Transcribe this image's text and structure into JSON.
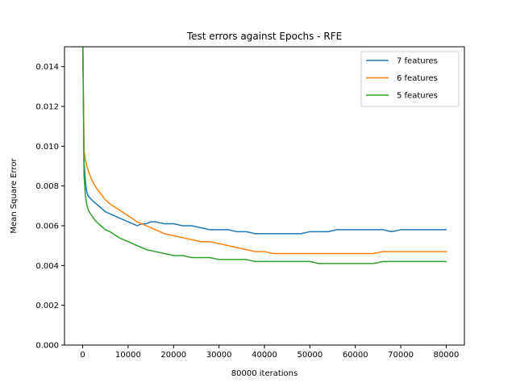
{
  "chart_data": {
    "type": "line",
    "title": "Test errors against Epochs - RFE",
    "xlabel": "80000 iterations",
    "ylabel": "Mean Square Error",
    "xlim": [
      -4000,
      84000
    ],
    "ylim": [
      0,
      0.015
    ],
    "xticks": [
      0,
      10000,
      20000,
      30000,
      40000,
      50000,
      60000,
      70000,
      80000
    ],
    "xtick_labels": [
      "0",
      "10000",
      "20000",
      "30000",
      "40000",
      "50000",
      "60000",
      "70000",
      "80000"
    ],
    "yticks": [
      0,
      0.002,
      0.004,
      0.006,
      0.008,
      0.01,
      0.012,
      0.014
    ],
    "ytick_labels": [
      "0.000",
      "0.002",
      "0.004",
      "0.006",
      "0.008",
      "0.010",
      "0.012",
      "0.014"
    ],
    "grid": false,
    "legend_position": "top-right",
    "series": [
      {
        "name": "7 features",
        "color": "#1f77b4",
        "x": [
          0,
          300,
          600,
          900,
          1200,
          2000,
          3000,
          4000,
          5000,
          6000,
          8000,
          10000,
          11000,
          12000,
          13000,
          14000,
          15000,
          16000,
          18000,
          20000,
          22000,
          24000,
          26000,
          28000,
          30000,
          32000,
          34000,
          36000,
          38000,
          40000,
          42000,
          44000,
          46000,
          48000,
          50000,
          52000,
          54000,
          56000,
          58000,
          60000,
          62000,
          64000,
          66000,
          68000,
          70000,
          72000,
          74000,
          76000,
          78000,
          80000
        ],
        "y": [
          0.016,
          0.0092,
          0.0082,
          0.0077,
          0.0075,
          0.0073,
          0.0071,
          0.0069,
          0.0067,
          0.0066,
          0.0064,
          0.0062,
          0.0061,
          0.006,
          0.0061,
          0.0061,
          0.0062,
          0.0062,
          0.0061,
          0.0061,
          0.006,
          0.006,
          0.0059,
          0.0058,
          0.0058,
          0.0058,
          0.0057,
          0.0057,
          0.0056,
          0.0056,
          0.0056,
          0.0056,
          0.0056,
          0.0056,
          0.0057,
          0.0057,
          0.0057,
          0.0058,
          0.0058,
          0.0058,
          0.0058,
          0.0058,
          0.0058,
          0.0057,
          0.0058,
          0.0058,
          0.0058,
          0.0058,
          0.0058,
          0.0058
        ]
      },
      {
        "name": "6 features",
        "color": "#ff7f0e",
        "x": [
          0,
          300,
          600,
          900,
          1500,
          2000,
          3000,
          4000,
          5000,
          6000,
          8000,
          10000,
          12000,
          14000,
          16000,
          18000,
          20000,
          22000,
          24000,
          26000,
          28000,
          30000,
          32000,
          34000,
          36000,
          38000,
          40000,
          42000,
          44000,
          46000,
          48000,
          50000,
          52000,
          54000,
          56000,
          58000,
          60000,
          62000,
          64000,
          66000,
          68000,
          70000,
          72000,
          74000,
          76000,
          78000,
          80000
        ],
        "y": [
          0.016,
          0.0098,
          0.0093,
          0.009,
          0.0086,
          0.0083,
          0.0079,
          0.0076,
          0.0073,
          0.0071,
          0.0068,
          0.0065,
          0.0062,
          0.006,
          0.0058,
          0.0056,
          0.0055,
          0.0054,
          0.0053,
          0.0052,
          0.0052,
          0.0051,
          0.005,
          0.0049,
          0.0048,
          0.0047,
          0.0047,
          0.0046,
          0.0046,
          0.0046,
          0.0046,
          0.0046,
          0.0046,
          0.0046,
          0.0046,
          0.0046,
          0.0046,
          0.0046,
          0.0046,
          0.0047,
          0.0047,
          0.0047,
          0.0047,
          0.0047,
          0.0047,
          0.0047,
          0.0047
        ]
      },
      {
        "name": "5 features",
        "color": "#2ca02c",
        "x": [
          0,
          300,
          600,
          900,
          1200,
          2000,
          3000,
          4000,
          5000,
          6000,
          8000,
          10000,
          12000,
          14000,
          16000,
          18000,
          20000,
          22000,
          24000,
          26000,
          28000,
          30000,
          32000,
          34000,
          36000,
          38000,
          40000,
          42000,
          44000,
          46000,
          48000,
          50000,
          52000,
          54000,
          56000,
          58000,
          60000,
          62000,
          64000,
          66000,
          68000,
          70000,
          72000,
          74000,
          76000,
          78000,
          80000
        ],
        "y": [
          0.016,
          0.0085,
          0.0075,
          0.0071,
          0.0068,
          0.0065,
          0.0062,
          0.006,
          0.0058,
          0.0057,
          0.0054,
          0.0052,
          0.005,
          0.0048,
          0.0047,
          0.0046,
          0.0045,
          0.0045,
          0.0044,
          0.0044,
          0.0044,
          0.0043,
          0.0043,
          0.0043,
          0.0043,
          0.0042,
          0.0042,
          0.0042,
          0.0042,
          0.0042,
          0.0042,
          0.0042,
          0.0041,
          0.0041,
          0.0041,
          0.0041,
          0.0041,
          0.0041,
          0.0041,
          0.0042,
          0.0042,
          0.0042,
          0.0042,
          0.0042,
          0.0042,
          0.0042,
          0.0042
        ]
      }
    ]
  }
}
